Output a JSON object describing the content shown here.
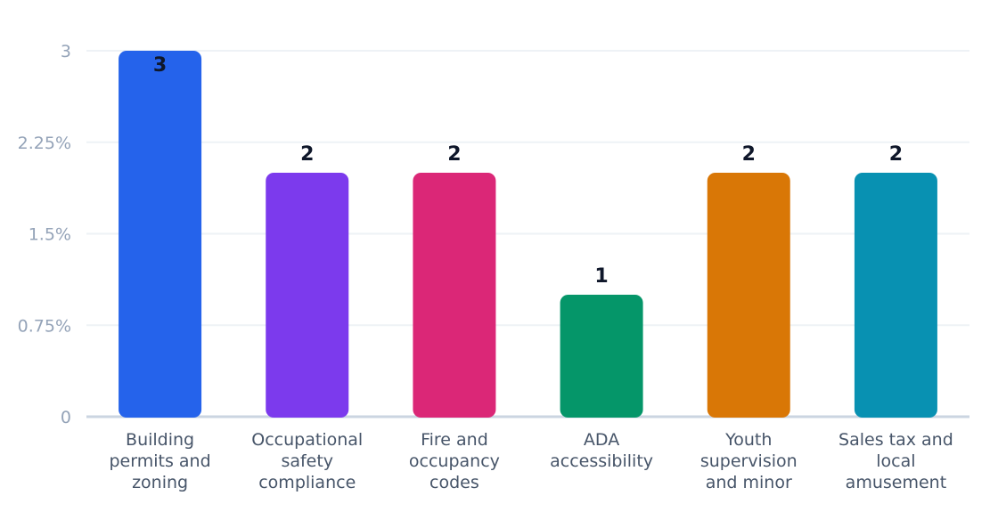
{
  "chart_data": {
    "type": "bar",
    "title": "",
    "xlabel": "",
    "ylabel": "",
    "categories": [
      [
        "Building",
        "permits and",
        "zoning"
      ],
      [
        "Occupational",
        "safety",
        "compliance"
      ],
      [
        "Fire and",
        "occupancy",
        "codes"
      ],
      [
        "ADA",
        "accessibility"
      ],
      [
        "Youth",
        "supervision",
        "and minor"
      ],
      [
        "Sales tax and",
        "local",
        "amusement"
      ]
    ],
    "values": [
      3,
      2,
      2,
      1,
      2,
      2
    ],
    "data_labels": [
      "3",
      "2",
      "2",
      "1",
      "2",
      "2"
    ],
    "colors": [
      "#2563eb",
      "#7c3aed",
      "#db2777",
      "#059669",
      "#d97706",
      "#0891b2"
    ],
    "ylim": [
      0,
      3
    ],
    "yticks": [
      0,
      0.75,
      1.5,
      2.25,
      3
    ],
    "ytick_labels": [
      "0",
      "0.75%",
      "1.5%",
      "2.25%",
      "3"
    ],
    "grid": true,
    "legend": "none"
  }
}
